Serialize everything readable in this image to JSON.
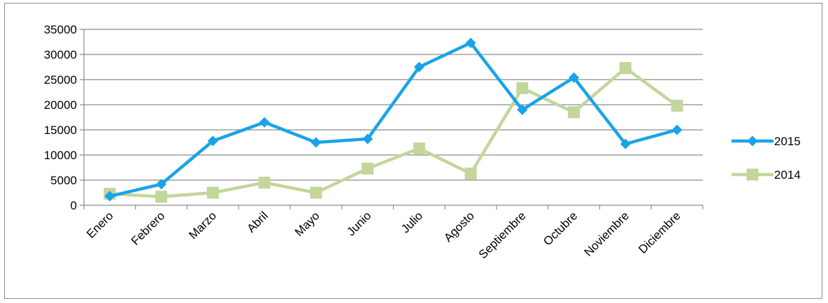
{
  "chart_data": {
    "type": "line",
    "title": "",
    "xlabel": "",
    "ylabel": "",
    "categories": [
      "Enero",
      "Febrero",
      "Marzo",
      "Abril",
      "Mayo",
      "Junio",
      "Julio",
      "Agosto",
      "Septiembre",
      "Octubre",
      "Noviembre",
      "Diciembre"
    ],
    "ylim": [
      0,
      35000
    ],
    "yticks": [
      "0",
      "5000",
      "10000",
      "15000",
      "20000",
      "25000",
      "30000",
      "35000"
    ],
    "grid": true,
    "legend": "right",
    "series": [
      {
        "name": "2015",
        "color": "#1aa3e8",
        "marker": "diamond",
        "values": [
          1800,
          4200,
          12800,
          16500,
          12500,
          13200,
          27500,
          32300,
          19000,
          25400,
          12200,
          15000
        ]
      },
      {
        "name": "2014",
        "color": "#c3d69b",
        "marker": "square",
        "values": [
          2300,
          1700,
          2500,
          4500,
          2500,
          7300,
          11300,
          6300,
          23300,
          18500,
          27300,
          19800
        ]
      }
    ]
  }
}
